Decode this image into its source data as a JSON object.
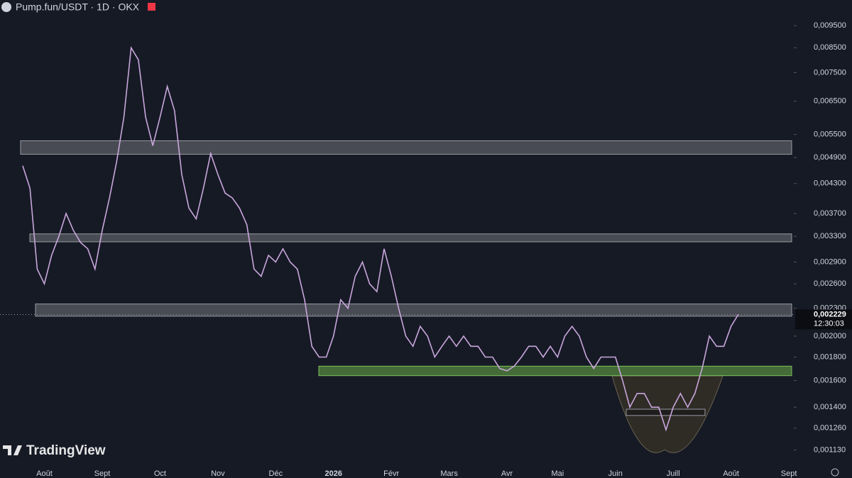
{
  "chart_data": {
    "type": "line",
    "title": "Pump.fun/USDT · 1D · OKX",
    "watermark": "TradingView",
    "categories": [
      null,
      null,
      null,
      "Août",
      null,
      null,
      null,
      null,
      null,
      null,
      null,
      "Sept",
      null,
      null,
      null,
      null,
      null,
      null,
      null,
      "Oct",
      null,
      null,
      null,
      null,
      null,
      null,
      null,
      "Nov",
      null,
      null,
      null,
      null,
      null,
      null,
      null,
      "Déc",
      null,
      null,
      null,
      null,
      null,
      null,
      null,
      "2026",
      null,
      null,
      null,
      null,
      null,
      null,
      null,
      "Févr",
      null,
      null,
      null,
      null,
      null,
      null,
      null,
      "Mars",
      null,
      null,
      null,
      null,
      null,
      null,
      null,
      "Avr",
      null,
      null,
      null,
      null,
      null,
      null,
      "Mai",
      null,
      null,
      null,
      null,
      null,
      null,
      null,
      "Juin",
      null,
      null,
      null,
      null,
      null,
      null,
      null,
      "Juill",
      null,
      null,
      null,
      null,
      null,
      null,
      null,
      "Août",
      null,
      null,
      null,
      null,
      null,
      null,
      null,
      "Sept"
    ],
    "values": [
      0.0047,
      0.0042,
      0.0028,
      0.0026,
      0.003,
      0.0033,
      0.0037,
      0.0034,
      0.0032,
      0.0031,
      0.0028,
      0.0034,
      0.004,
      0.0048,
      0.006,
      0.0085,
      0.008,
      0.006,
      0.0052,
      0.006,
      0.007,
      0.0062,
      0.0045,
      0.0038,
      0.0036,
      0.0042,
      0.005,
      0.0045,
      0.0041,
      0.004,
      0.0038,
      0.0035,
      0.0028,
      0.0027,
      0.003,
      0.0029,
      0.0031,
      0.0029,
      0.0028,
      0.0024,
      0.0019,
      0.0018,
      0.0018,
      0.002,
      0.0024,
      0.0023,
      0.0027,
      0.0029,
      0.0026,
      0.0025,
      0.0031,
      0.0027,
      0.0023,
      0.002,
      0.0019,
      0.0021,
      0.002,
      0.0018,
      0.0019,
      0.002,
      0.0019,
      0.002,
      0.0019,
      0.0019,
      0.0018,
      0.0018,
      0.0017,
      0.00168,
      0.00172,
      0.0018,
      0.0019,
      0.0019,
      0.0018,
      0.0019,
      0.0018,
      0.002,
      0.0021,
      0.002,
      0.0018,
      0.0017,
      0.0018,
      0.0018,
      0.0018,
      0.0016,
      0.0014,
      0.0015,
      0.0015,
      0.0014,
      0.0014,
      0.00125,
      0.0014,
      0.0015,
      0.0014,
      0.0015,
      0.0017,
      0.002,
      0.0019,
      0.0019,
      0.0021,
      0.002229,
      null,
      null,
      null,
      null,
      null,
      null,
      null
    ],
    "color": "#c9a6dc",
    "log_scale": true,
    "ylim": [
      0.00105,
      0.0108
    ],
    "yticks": [
      {
        "value": 0.0095,
        "label": "0,009500"
      },
      {
        "value": 0.0085,
        "label": "0,008500"
      },
      {
        "value": 0.0075,
        "label": "0,007500"
      },
      {
        "value": 0.0065,
        "label": "0,006500"
      },
      {
        "value": 0.0055,
        "label": "0,005500"
      },
      {
        "value": 0.0049,
        "label": "0,004900"
      },
      {
        "value": 0.0043,
        "label": "0,004300"
      },
      {
        "value": 0.0037,
        "label": "0,003700"
      },
      {
        "value": 0.0033,
        "label": "0,003300"
      },
      {
        "value": 0.0029,
        "label": "0,002900"
      },
      {
        "value": 0.0026,
        "label": "0,002600"
      },
      {
        "value": 0.0023,
        "label": "0,002300"
      },
      {
        "value": 0.002,
        "label": "0,002000"
      },
      {
        "value": 0.0018,
        "label": "0,001800"
      },
      {
        "value": 0.0016,
        "label": "0,001600"
      },
      {
        "value": 0.0014,
        "label": "0,001400"
      },
      {
        "value": 0.00126,
        "label": "0,001260"
      },
      {
        "value": 0.00113,
        "label": "0,001130"
      }
    ],
    "grid": false,
    "last_price": {
      "value": 0.002229,
      "label": "0,002229"
    },
    "countdown": "12:30:03",
    "zones": [
      {
        "from": 0.00498,
        "to": 0.00533,
        "color": "#55575f"
      },
      {
        "from": 0.00321,
        "to": 0.00334,
        "color": "#55575f"
      },
      {
        "from": 0.00221,
        "to": 0.00235,
        "color": "#55575f"
      },
      {
        "from": 0.00164,
        "to": 0.00172,
        "color": "#4d7a3c"
      },
      {
        "from": 0.001343,
        "to": 0.001386,
        "color": "#1c1c1c"
      }
    ]
  }
}
